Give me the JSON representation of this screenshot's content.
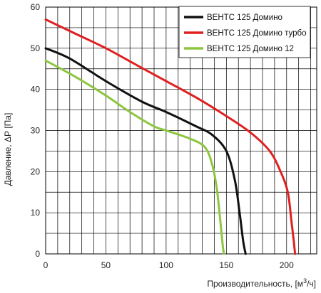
{
  "chart_data": {
    "type": "line",
    "xlabel_main": "Производительность, [м",
    "xlabel_sup": "3",
    "xlabel_tail": "/ч]",
    "ylabel": "Давление, ΔР [Па]",
    "xlim": [
      0,
      225
    ],
    "ylim": [
      0,
      60
    ],
    "x_ticks": [
      0,
      50,
      100,
      150,
      200
    ],
    "y_ticks": [
      0,
      10,
      20,
      30,
      40,
      50,
      60
    ],
    "x_tick_labels": [
      "0",
      "50",
      "100",
      "150",
      "200"
    ],
    "y_tick_labels": [
      "0",
      "10",
      "20",
      "30",
      "40",
      "50",
      "60"
    ],
    "x_grid_step": 10,
    "y_grid_step": 5,
    "grid": true,
    "legend_position": "top-right",
    "series": [
      {
        "name": "ВЕНТС 125 Домино",
        "color": "#111111",
        "points": [
          [
            0,
            50
          ],
          [
            20,
            47.5
          ],
          [
            50,
            42
          ],
          [
            80,
            37
          ],
          [
            100,
            34.5
          ],
          [
            125,
            31
          ],
          [
            138,
            29
          ],
          [
            150,
            25
          ],
          [
            157,
            18
          ],
          [
            161,
            10
          ],
          [
            164,
            3
          ],
          [
            166,
            0
          ]
        ]
      },
      {
        "name": "ВЕНТС 125 Домино турбо",
        "color": "#e02020",
        "points": [
          [
            0,
            57
          ],
          [
            25,
            53.5
          ],
          [
            50,
            50
          ],
          [
            75,
            46
          ],
          [
            100,
            42
          ],
          [
            125,
            38
          ],
          [
            150,
            33.5
          ],
          [
            170,
            29.5
          ],
          [
            186,
            25
          ],
          [
            195,
            20
          ],
          [
            201,
            15
          ],
          [
            204,
            8
          ],
          [
            206,
            3
          ],
          [
            207,
            0
          ]
        ]
      },
      {
        "name": "ВЕНТС 125 Домино 12",
        "color": "#8dc63f",
        "points": [
          [
            0,
            47
          ],
          [
            25,
            43
          ],
          [
            50,
            38.5
          ],
          [
            70,
            34.5
          ],
          [
            90,
            31
          ],
          [
            100,
            30
          ],
          [
            120,
            28
          ],
          [
            132,
            26
          ],
          [
            138,
            22
          ],
          [
            142,
            16
          ],
          [
            145,
            8
          ],
          [
            147,
            2
          ],
          [
            148,
            0
          ]
        ]
      }
    ]
  }
}
